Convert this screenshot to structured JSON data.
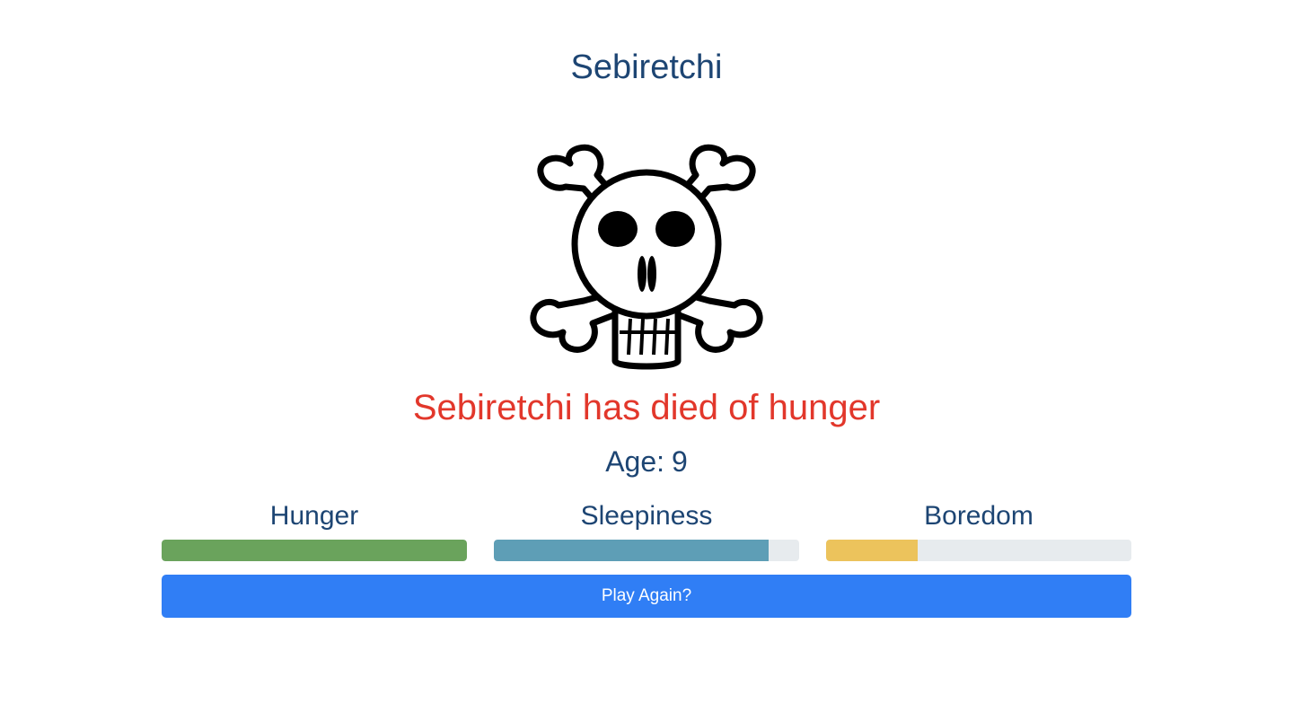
{
  "game": {
    "title": "Sebiretchi",
    "status_message": "Sebiretchi has died of hunger",
    "age_label": "Age:",
    "age_value": "9",
    "pet_image_icon": "skull-and-crossbones-icon"
  },
  "stats": [
    {
      "label": "Hunger",
      "level": 1.0,
      "color": "#6aa35c"
    },
    {
      "label": "Sleepiness",
      "level": 0.9,
      "color": "#5e9eb6"
    },
    {
      "label": "Boredom",
      "level": 0.3,
      "color": "#ecc35c"
    }
  ],
  "colors": {
    "title": "#1d4573",
    "death_message": "#e2372b",
    "button": "#307ef5",
    "bar_track": "#e7ebee"
  },
  "actions": {
    "play_again_label": "Play Again?"
  }
}
